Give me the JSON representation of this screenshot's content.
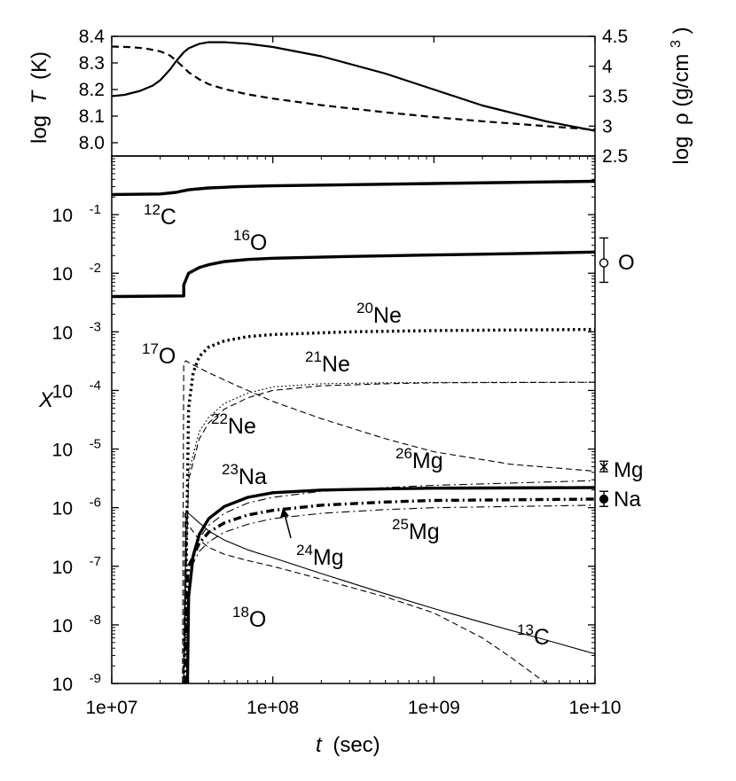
{
  "chart_data": [
    {
      "type": "line",
      "panel": "top",
      "ylabel_left_prefix": "log",
      "ylabel_left_var": "T",
      "ylabel_left_unit": "(K)",
      "ylabel_right_prefix": "log",
      "ylabel_right_var": "ρ",
      "ylabel_right_unit_base": "(g/cm",
      "ylabel_right_unit_exp": "3",
      "ylabel_right_unit_close": ")",
      "xlim": [
        10000000,
        10000000000
      ],
      "ylim_left": [
        7.95,
        8.4
      ],
      "ylim_right": [
        2.5,
        4.5
      ],
      "yticks_left": [
        "8.0",
        "8.1",
        "8.2",
        "8.3",
        "8.4"
      ],
      "yticks_left_values": [
        8.0,
        8.1,
        8.2,
        8.3,
        8.4
      ],
      "yticks_right": [
        "2.5",
        "3",
        "3.5",
        "4",
        "4.5"
      ],
      "yticks_right_values": [
        2.5,
        3.0,
        3.5,
        4.0,
        4.5
      ],
      "series": [
        {
          "style": "solid",
          "axis": "left",
          "x": [
            10000000,
            12000000,
            15000000,
            18000000,
            20000000,
            23000000,
            25000000,
            28000000,
            30000000,
            35000000,
            40000000,
            50000000,
            70000000,
            100000000,
            200000000,
            500000000,
            1000000000,
            2000000000,
            5000000000,
            10000000000
          ],
          "y": [
            8.175,
            8.18,
            8.195,
            8.215,
            8.235,
            8.275,
            8.305,
            8.34,
            8.355,
            8.372,
            8.378,
            8.378,
            8.372,
            8.36,
            8.325,
            8.26,
            8.2,
            8.14,
            8.08,
            8.045
          ]
        },
        {
          "style": "dashed",
          "axis": "right",
          "x": [
            10000000,
            13000000,
            16000000,
            20000000,
            23000000,
            25000000,
            28000000,
            30000000,
            35000000,
            40000000,
            50000000,
            70000000,
            100000000,
            200000000,
            500000000,
            1000000000,
            2000000000,
            5000000000,
            10000000000
          ],
          "y": [
            4.33,
            4.32,
            4.3,
            4.25,
            4.18,
            4.1,
            3.98,
            3.9,
            3.78,
            3.7,
            3.62,
            3.53,
            3.46,
            3.35,
            3.23,
            3.15,
            3.08,
            3.0,
            2.94
          ]
        }
      ]
    },
    {
      "type": "line",
      "panel": "bottom",
      "xlabel_var": "t",
      "xlabel_unit": "(sec)",
      "ylabel": "X",
      "log_x": true,
      "log_y": true,
      "xlim": [
        10000000,
        10000000000
      ],
      "ylim": [
        1e-09,
        1.0
      ],
      "xticks": [
        "1e+07",
        "1e+08",
        "1e+09",
        "1e+10"
      ],
      "xticks_values": [
        10000000,
        100000000,
        1000000000,
        10000000000
      ],
      "yticks_base": "10",
      "yticks_exponents": [
        "-1",
        "-2",
        "-3",
        "-4",
        "-5",
        "-6",
        "-7",
        "-8",
        "-9"
      ],
      "yticks_values": [
        0.1,
        0.01,
        0.001,
        0.0001,
        1e-05,
        1e-06,
        1e-07,
        1e-08,
        1e-09
      ],
      "series": [
        {
          "name": "12C",
          "style": "solid",
          "weight": "thick",
          "x": [
            10000000,
            20000000,
            25000000,
            30000000,
            40000000,
            60000000,
            100000000,
            1000000000,
            10000000000
          ],
          "y": [
            0.22,
            0.225,
            0.24,
            0.265,
            0.285,
            0.3,
            0.31,
            0.34,
            0.37
          ]
        },
        {
          "name": "16O",
          "style": "solid",
          "weight": "thick",
          "x": [
            10000000,
            28000000,
            28000000,
            30000000,
            35000000,
            40000000,
            50000000,
            70000000,
            100000000,
            300000000,
            1000000000,
            3000000000,
            10000000000
          ],
          "y": [
            0.004,
            0.0041,
            0.0063,
            0.01,
            0.0125,
            0.014,
            0.0158,
            0.0172,
            0.018,
            0.0193,
            0.0205,
            0.0215,
            0.023
          ]
        },
        {
          "name": "20Ne",
          "style": "dotted",
          "weight": "thick",
          "x": [
            28000000,
            29000000,
            30000000,
            32000000,
            35000000,
            40000000,
            50000000,
            70000000,
            100000000,
            300000000,
            1000000000,
            10000000000
          ],
          "y": [
            1e-09,
            1e-07,
            5e-05,
            0.0002,
            0.00038,
            0.00055,
            0.0007,
            0.00083,
            0.0009,
            0.001,
            0.00105,
            0.0011
          ]
        },
        {
          "name": "21Ne",
          "style": "dotted",
          "weight": "thin",
          "x": [
            28000000,
            29000000,
            30000000,
            35000000,
            40000000,
            50000000,
            70000000,
            100000000,
            200000000,
            500000000,
            1000000000,
            10000000000
          ],
          "y": [
            1e-09,
            1e-07,
            4e-06,
            2e-05,
            3.5e-05,
            6e-05,
            9e-05,
            0.000115,
            0.00013,
            0.000135,
            0.000137,
            0.000138
          ]
        },
        {
          "name": "17O",
          "style": "dashed",
          "weight": "thin",
          "x": [
            27500000,
            28000000,
            29000000,
            30000000,
            40000000,
            60000000,
            100000000,
            200000000,
            500000000,
            1000000000,
            3000000000,
            10000000000
          ],
          "y": [
            1e-09,
            0.0003,
            0.00032,
            0.0003,
            0.0002,
            0.00012,
            6.5e-05,
            3.3e-05,
            1.5e-05,
            9e-06,
            5.5e-06,
            4.2e-06
          ]
        },
        {
          "name": "22Ne",
          "style": "dashed",
          "weight": "thin",
          "x": [
            28000000,
            29000000,
            30000000,
            35000000,
            40000000,
            50000000,
            70000000,
            100000000,
            200000000,
            500000000,
            1000000000,
            10000000000
          ],
          "y": [
            1e-09,
            1e-07,
            3e-06,
            1.5e-05,
            2.8e-05,
            4.8e-05,
            7.5e-05,
            0.0001,
            0.00012,
            0.00013,
            0.000135,
            0.000138
          ]
        },
        {
          "name": "23Na",
          "style": "solid",
          "weight": "thick",
          "x": [
            29500000,
            30000000,
            32000000,
            35000000,
            40000000,
            50000000,
            70000000,
            100000000,
            200000000,
            500000000,
            1000000000,
            10000000000
          ],
          "y": [
            1e-09,
            3e-08,
            1.5e-07,
            3.5e-07,
            6.5e-07,
            1.05e-06,
            1.5e-06,
            1.8e-06,
            2e-06,
            2.1e-06,
            2.15e-06,
            2.2e-06
          ]
        },
        {
          "name": "24Mg",
          "style": "dash-dot",
          "weight": "thick",
          "x": [
            28500000,
            29000000,
            30000000,
            35000000,
            40000000,
            50000000,
            70000000,
            100000000,
            200000000,
            500000000,
            1000000000,
            10000000000
          ],
          "y": [
            1e-09,
            4e-08,
            1e-07,
            2.5e-07,
            3.8e-07,
            5.5e-07,
            7.5e-07,
            9e-07,
            1.1e-06,
            1.25e-06,
            1.33e-06,
            1.4e-06
          ]
        },
        {
          "name": "25Mg",
          "style": "dash-dot",
          "weight": "thin",
          "x": [
            28200000,
            29000000,
            30000000,
            35000000,
            40000000,
            50000000,
            70000000,
            100000000,
            200000000,
            500000000,
            1000000000,
            10000000000
          ],
          "y": [
            1e-09,
            5e-08,
            8e-08,
            1.8e-07,
            2.6e-07,
            3.8e-07,
            5.2e-07,
            6.5e-07,
            8e-07,
            9.3e-07,
            1e-06,
            1.1e-06
          ]
        },
        {
          "name": "26Mg",
          "style": "dash-dot",
          "weight": "thin",
          "x": [
            29000000,
            30000000,
            35000000,
            40000000,
            50000000,
            70000000,
            100000000,
            200000000,
            500000000,
            1000000000,
            10000000000
          ],
          "y": [
            1e-09,
            1e-07,
            3e-07,
            5e-07,
            8e-07,
            1.2e-06,
            1.5e-06,
            1.9e-06,
            2.2e-06,
            2.4e-06,
            2.9e-06
          ]
        },
        {
          "name": "18O",
          "style": "dashed",
          "weight": "thin",
          "x": [
            28000000,
            28500000,
            30000000,
            35000000,
            40000000,
            50000000,
            70000000,
            100000000,
            200000000,
            500000000,
            1000000000,
            2000000000,
            3000000000,
            5000000000
          ],
          "y": [
            1e-09,
            8e-07,
            5e-07,
            2.8e-07,
            2.1e-07,
            1.6e-07,
            1.25e-07,
            1e-07,
            6e-08,
            3e-08,
            1.6e-08,
            6e-09,
            2.8e-09,
            1e-09
          ]
        },
        {
          "name": "13C",
          "style": "solid",
          "weight": "thin",
          "x": [
            28000000,
            29000000,
            30000000,
            35000000,
            40000000,
            50000000,
            70000000,
            100000000,
            200000000,
            500000000,
            1000000000,
            2000000000,
            5000000000,
            10000000000
          ],
          "y": [
            1e-09,
            9e-07,
            8e-07,
            5.5e-07,
            4e-07,
            2.8e-07,
            1.9e-07,
            1.4e-07,
            7.5e-08,
            3.4e-08,
            1.9e-08,
            1.1e-08,
            5.5e-09,
            3.2e-09
          ]
        }
      ],
      "labels": [
        {
          "mass": "12",
          "elem": "C"
        },
        {
          "mass": "16",
          "elem": "O"
        },
        {
          "mass": "20",
          "elem": "Ne"
        },
        {
          "mass": "17",
          "elem": "O"
        },
        {
          "mass": "21",
          "elem": "Ne"
        },
        {
          "mass": "22",
          "elem": "Ne"
        },
        {
          "mass": "26",
          "elem": "Mg"
        },
        {
          "mass": "23",
          "elem": "Na"
        },
        {
          "mass": "25",
          "elem": "Mg"
        },
        {
          "mass": "24",
          "elem": "Mg"
        },
        {
          "mass": "18",
          "elem": "O"
        },
        {
          "mass": "13",
          "elem": "C"
        }
      ],
      "observations": [
        {
          "label": "O",
          "marker": "open-circle",
          "value": 0.015,
          "err_low": 0.007,
          "err_high": 0.04
        },
        {
          "label": "Mg",
          "marker": "cross",
          "value": 5e-06,
          "err_low": 4.1e-06,
          "err_high": 6.2e-06
        },
        {
          "label": "Na",
          "marker": "filled-circle",
          "value": 1.4e-06,
          "err_low": 1.05e-06,
          "err_high": 1.9e-06
        }
      ]
    }
  ]
}
